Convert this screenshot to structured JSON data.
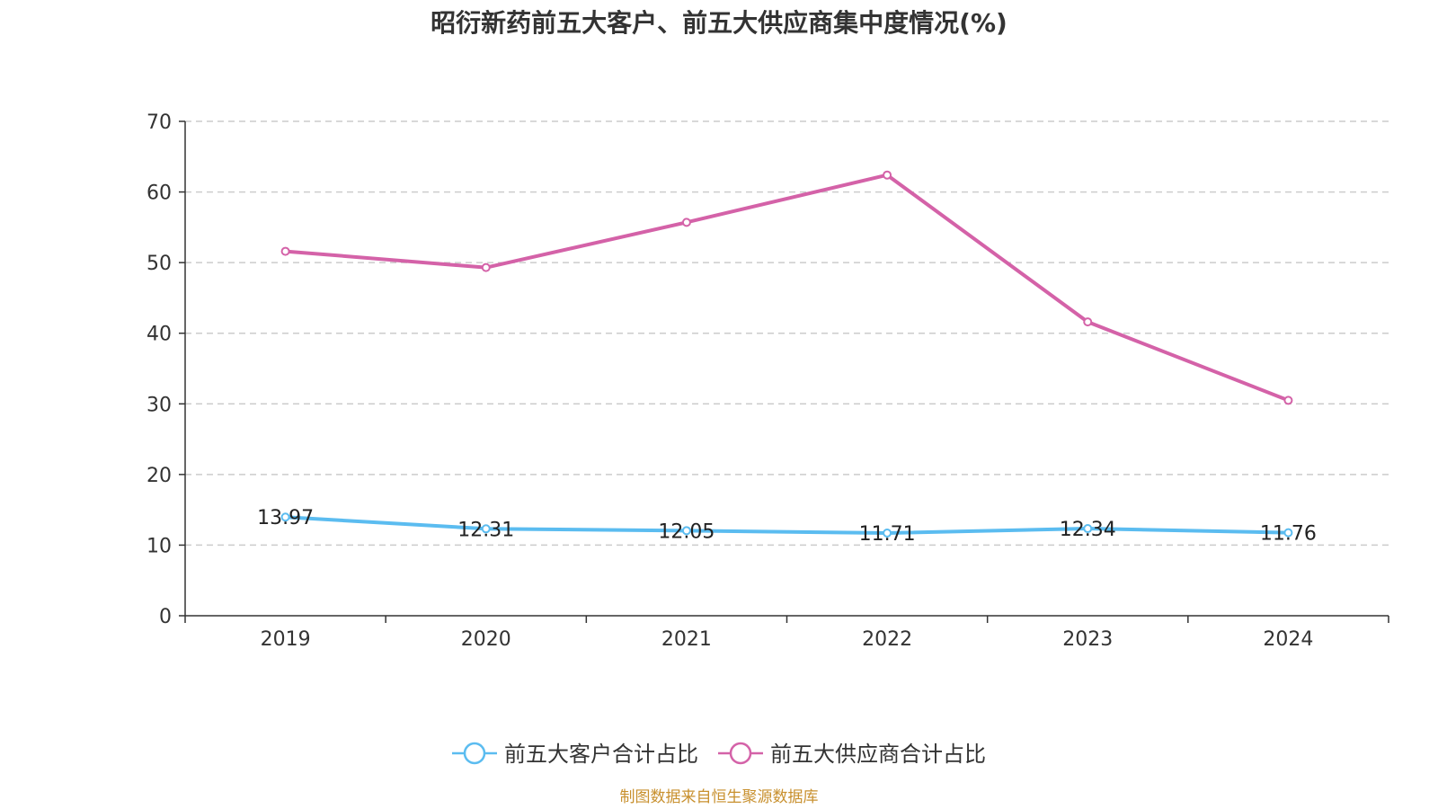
{
  "title": "昭衍新药前五大客户、前五大供应商集中度情况(%)",
  "source_note": "制图数据来自恒生聚源数据库",
  "colors": {
    "customers": "#5bbcf0",
    "suppliers": "#d462a8",
    "grid": "#cccccc",
    "axis": "#333333",
    "text": "#333333",
    "source": "#c8902e"
  },
  "chart_data": {
    "type": "line",
    "title": "昭衍新药前五大客户、前五大供应商集中度情况(%)",
    "xlabel": "",
    "ylabel": "",
    "categories": [
      "2019",
      "2020",
      "2021",
      "2022",
      "2023",
      "2024"
    ],
    "ylim": [
      0,
      70
    ],
    "yticks": [
      0,
      10,
      20,
      30,
      40,
      50,
      60,
      70
    ],
    "grid": true,
    "legend_position": "bottom-center",
    "series": [
      {
        "name": "前五大客户合计占比",
        "key": "customers",
        "values": [
          13.97,
          12.31,
          12.05,
          11.71,
          12.34,
          11.76
        ],
        "labels": [
          "13.97",
          "12.31",
          "12.05",
          "11.71",
          "12.34",
          "11.76"
        ],
        "show_labels": true
      },
      {
        "name": "前五大供应商合计占比",
        "key": "suppliers",
        "values": [
          51.6,
          49.3,
          55.7,
          62.4,
          41.6,
          30.5
        ],
        "show_labels": false
      }
    ]
  }
}
